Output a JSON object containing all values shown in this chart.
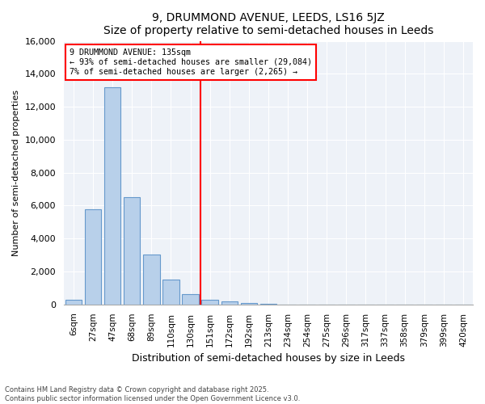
{
  "title1": "9, DRUMMOND AVENUE, LEEDS, LS16 5JZ",
  "title2": "Size of property relative to semi-detached houses in Leeds",
  "xlabel": "Distribution of semi-detached houses by size in Leeds",
  "ylabel": "Number of semi-detached properties",
  "bin_labels": [
    "6sqm",
    "27sqm",
    "47sqm",
    "68sqm",
    "89sqm",
    "110sqm",
    "130sqm",
    "151sqm",
    "172sqm",
    "192sqm",
    "213sqm",
    "234sqm",
    "254sqm",
    "275sqm",
    "296sqm",
    "317sqm",
    "337sqm",
    "358sqm",
    "379sqm",
    "399sqm",
    "420sqm"
  ],
  "bar_values": [
    300,
    5800,
    13200,
    6500,
    3050,
    1500,
    650,
    300,
    200,
    100,
    50,
    0,
    0,
    0,
    0,
    0,
    0,
    0,
    0,
    0,
    0
  ],
  "bar_color": "#b8d0ea",
  "bar_edge_color": "#6699cc",
  "vline_pos": 6.5,
  "annotation_title": "9 DRUMMOND AVENUE: 135sqm",
  "annotation_line1": "← 93% of semi-detached houses are smaller (29,084)",
  "annotation_line2": "7% of semi-detached houses are larger (2,265) →",
  "ylim": [
    0,
    16000
  ],
  "yticks": [
    0,
    2000,
    4000,
    6000,
    8000,
    10000,
    12000,
    14000,
    16000
  ],
  "bg_color": "#eef2f8",
  "footnote1": "Contains HM Land Registry data © Crown copyright and database right 2025.",
  "footnote2": "Contains public sector information licensed under the Open Government Licence v3.0."
}
